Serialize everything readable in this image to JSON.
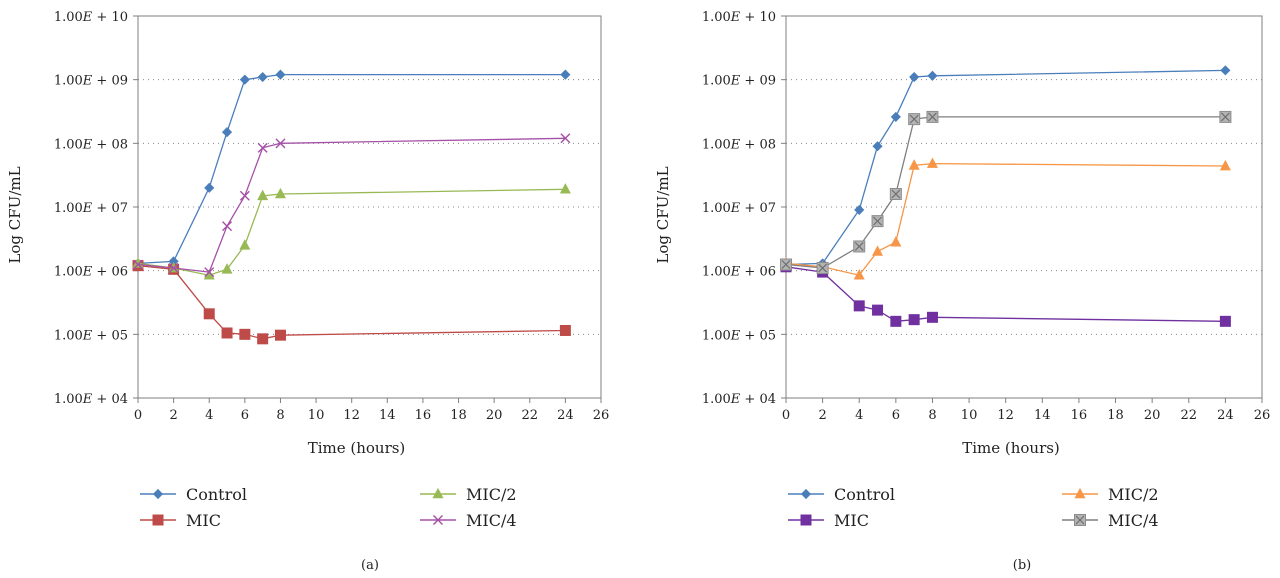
{
  "chart_data": [
    {
      "type": "line",
      "panel_label": "(a)",
      "xlabel": "Time (hours)",
      "ylabel": "Log CFU/mL",
      "yscale": "log",
      "ylim": [
        10000,
        10000000000
      ],
      "xlim": [
        0,
        26
      ],
      "x_ticks": [
        "0",
        "2",
        "4",
        "6",
        "8",
        "10",
        "12",
        "14",
        "16",
        "18",
        "20",
        "22",
        "24",
        "26"
      ],
      "y_ticks": [
        {
          "value": 10000,
          "label": "1.00E + 04"
        },
        {
          "value": 100000,
          "label": "1.00E + 05"
        },
        {
          "value": 1000000,
          "label": "1.00E + 06"
        },
        {
          "value": 10000000,
          "label": "1.00E + 07"
        },
        {
          "value": 100000000,
          "label": "1.00E + 08"
        },
        {
          "value": 1000000000,
          "label": "1.00E + 09"
        },
        {
          "value": 10000000000,
          "label": "1.00E + 10"
        }
      ],
      "grid": "horizontal dotted",
      "legend_position": "bottom",
      "series": [
        {
          "name": "Control",
          "color": "#4a7ebb",
          "marker": "diamond",
          "x": [
            0,
            2,
            4,
            5,
            6,
            7,
            8,
            24
          ],
          "y": [
            1300000,
            1400000,
            20000000,
            150000000,
            1000000000,
            1100000000,
            1200000000,
            1200000000
          ]
        },
        {
          "name": "MIC",
          "color": "#be4b48",
          "marker": "square",
          "x": [
            0,
            2,
            4,
            5,
            6,
            7,
            8,
            24
          ],
          "y": [
            1200000,
            1050000,
            210000,
            105000,
            100000,
            85000,
            97000,
            115000
          ]
        },
        {
          "name": "MIC/2",
          "color": "#98b954",
          "marker": "triangle",
          "x": [
            0,
            2,
            4,
            5,
            6,
            7,
            8,
            24
          ],
          "y": [
            1300000,
            1100000,
            850000,
            1050000,
            2500000,
            15000000,
            16000000,
            19000000
          ]
        },
        {
          "name": "MIC/4",
          "color": "#a550a7",
          "marker": "cross",
          "x": [
            0,
            2,
            4,
            5,
            6,
            7,
            8,
            24
          ],
          "y": [
            1250000,
            1100000,
            950000,
            5000000,
            15000000,
            85000000,
            100000000,
            120000000
          ]
        }
      ]
    },
    {
      "type": "line",
      "panel_label": "(b)",
      "xlabel": "Time (hours)",
      "ylabel": "Log CFU/mL",
      "yscale": "log",
      "ylim": [
        10000,
        10000000000
      ],
      "xlim": [
        0,
        26
      ],
      "x_ticks": [
        "0",
        "2",
        "4",
        "6",
        "8",
        "10",
        "12",
        "14",
        "16",
        "18",
        "20",
        "22",
        "24",
        "26"
      ],
      "y_ticks": [
        {
          "value": 10000,
          "label": "1.00E + 04"
        },
        {
          "value": 100000,
          "label": "1.00E + 05"
        },
        {
          "value": 1000000,
          "label": "1.00E + 06"
        },
        {
          "value": 10000000,
          "label": "1.00E + 07"
        },
        {
          "value": 100000000,
          "label": "1.00E + 08"
        },
        {
          "value": 1000000000,
          "label": "1.00E + 09"
        },
        {
          "value": 10000000000,
          "label": "1.00E + 10"
        }
      ],
      "grid": "horizontal dotted",
      "legend_position": "bottom",
      "series": [
        {
          "name": "Control",
          "color": "#4a7ebb",
          "marker": "diamond",
          "x": [
            0,
            2,
            4,
            5,
            6,
            7,
            8,
            24
          ],
          "y": [
            1250000,
            1300000,
            9000000,
            90000000,
            260000000,
            1100000000,
            1150000000,
            1400000000
          ]
        },
        {
          "name": "MIC",
          "color": "#7030a0",
          "marker": "square",
          "x": [
            0,
            2,
            4,
            5,
            6,
            7,
            8,
            24
          ],
          "y": [
            1150000,
            950000,
            280000,
            240000,
            160000,
            170000,
            185000,
            160000
          ]
        },
        {
          "name": "MIC/2",
          "color": "#f79646",
          "marker": "triangle",
          "x": [
            0,
            2,
            4,
            5,
            6,
            7,
            8,
            24
          ],
          "y": [
            1300000,
            1150000,
            850000,
            2000000,
            2800000,
            45000000,
            48000000,
            44000000
          ]
        },
        {
          "name": "MIC/4",
          "color": "#7f7f7f",
          "marker": "xsquare",
          "x": [
            0,
            2,
            4,
            5,
            6,
            7,
            8,
            24
          ],
          "y": [
            1250000,
            1100000,
            2400000,
            6000000,
            16000000,
            240000000,
            260000000,
            260000000
          ]
        }
      ]
    }
  ]
}
